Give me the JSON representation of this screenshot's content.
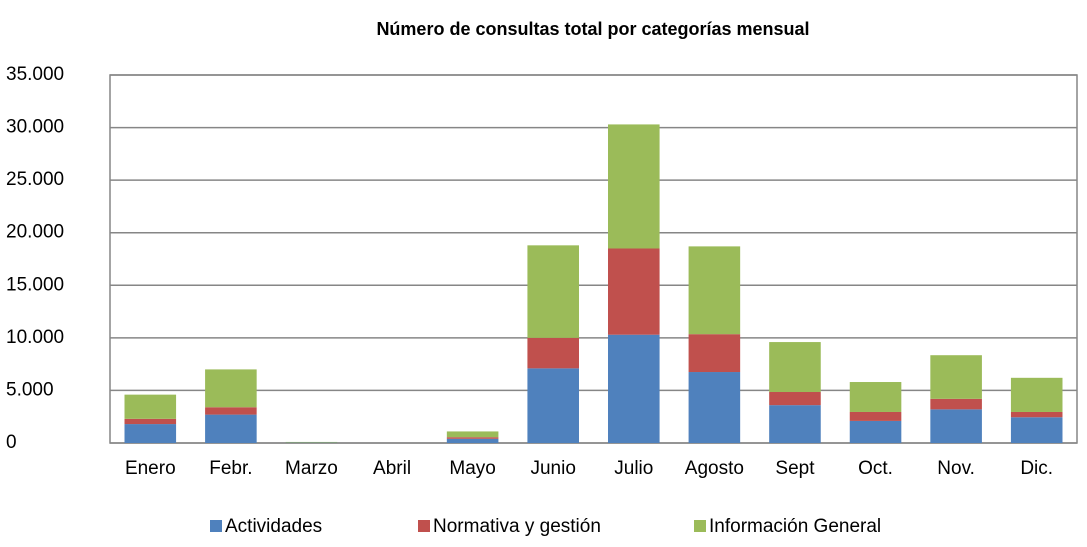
{
  "chart_data": {
    "type": "stacked_bar",
    "title": "Número de consultas total por categorías mensual",
    "categories": [
      "Enero",
      "Febr.",
      "Marzo",
      "Abril",
      "Mayo",
      "Junio",
      "Julio",
      "Agosto",
      "Sept",
      "Oct.",
      "Nov.",
      "Dic."
    ],
    "series": [
      {
        "name": "Actividades",
        "color": "#4f81bd",
        "values": [
          1800,
          2700,
          40,
          0,
          400,
          7100,
          10300,
          6750,
          3600,
          2100,
          3200,
          2450
        ]
      },
      {
        "name": "Normativa y gestión",
        "color": "#c0504d",
        "values": [
          500,
          700,
          10,
          0,
          150,
          2900,
          8200,
          3600,
          1250,
          850,
          1000,
          500
        ]
      },
      {
        "name": "Información General",
        "color": "#9bbb59",
        "values": [
          2300,
          3600,
          50,
          0,
          550,
          8800,
          11800,
          8350,
          4750,
          2850,
          4150,
          3250
        ]
      }
    ],
    "ylim": [
      0,
      35000
    ],
    "yticks": [
      0,
      {
        "value": 5000,
        "label": "5.000"
      },
      {
        "value": 10000,
        "label": "10.000"
      },
      {
        "value": 15000,
        "label": "15.000"
      },
      {
        "value": 20000,
        "label": "20.000"
      },
      {
        "value": 25000,
        "label": "25.000"
      },
      {
        "value": 30000,
        "label": "30.000"
      },
      {
        "value": 35000,
        "label": "35.000"
      }
    ],
    "grid": true,
    "legend": "bottom"
  }
}
